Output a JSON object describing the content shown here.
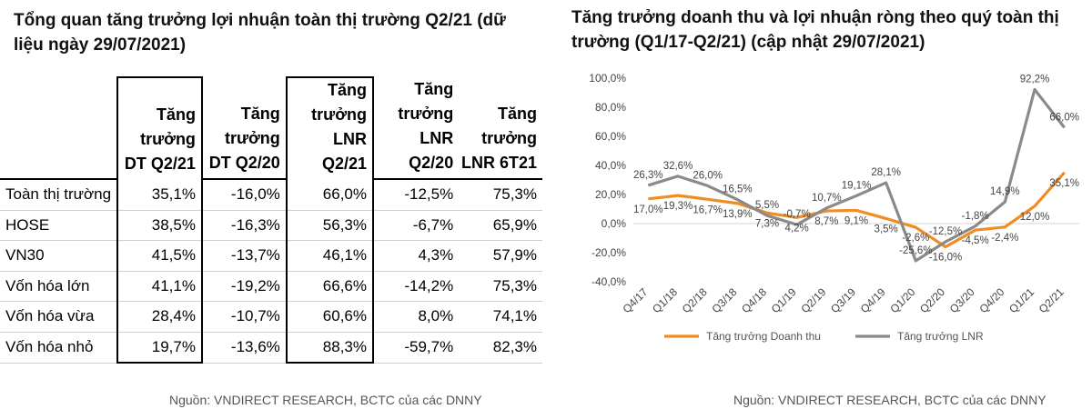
{
  "left": {
    "title": "Tổng quan tăng trưởng lợi nhuận toàn thị trường Q2/21 (dữ liệu ngày 29/07/2021)",
    "columns": [
      "Tăng trưởng DT Q2/21",
      "Tăng trưởng DT Q2/20",
      "Tăng trưởng LNR Q2/21",
      "Tăng trưởng LNR Q2/20",
      "Tăng trưởng LNR 6T21"
    ],
    "rows": [
      {
        "label": "Toàn thị trường",
        "values": [
          "35,1%",
          "-16,0%",
          "66,0%",
          "-12,5%",
          "75,3%"
        ]
      },
      {
        "label": "HOSE",
        "values": [
          "38,5%",
          "-16,3%",
          "56,3%",
          "-6,7%",
          "65,9%"
        ]
      },
      {
        "label": "VN30",
        "values": [
          "41,5%",
          "-13,7%",
          "46,1%",
          "4,3%",
          "57,9%"
        ]
      },
      {
        "label": "Vốn hóa lớn",
        "values": [
          "41,1%",
          "-19,2%",
          "66,6%",
          "-14,2%",
          "75,3%"
        ]
      },
      {
        "label": "Vốn hóa vừa",
        "values": [
          "28,4%",
          "-10,7%",
          "60,6%",
          "8,0%",
          "74,1%"
        ]
      },
      {
        "label": "Vốn hóa nhỏ",
        "values": [
          "19,7%",
          "-13,6%",
          "88,3%",
          "-59,7%",
          "82,3%"
        ]
      }
    ],
    "source": "Nguồn: VNDIRECT RESEARCH, BCTC của các DNNY"
  },
  "right": {
    "title": "Tăng trưởng doanh thu và lợi nhuận ròng theo quý toàn thị trường (Q1/17-Q2/21) (cập nhật 29/07/2021)",
    "source": "Nguồn: VNDIRECT RESEARCH, BCTC của các DNNY"
  },
  "chart_data": {
    "type": "line",
    "categories": [
      "Q4/17",
      "Q1/18",
      "Q2/18",
      "Q3/18",
      "Q4/18",
      "Q1/19",
      "Q2/19",
      "Q3/19",
      "Q4/19",
      "Q1/20",
      "Q2/20",
      "Q3/20",
      "Q4/20",
      "Q1/21",
      "Q2/21"
    ],
    "ylim": [
      -40,
      100
    ],
    "yticks": [
      -40,
      -20,
      0,
      20,
      40,
      60,
      80,
      100
    ],
    "ytick_labels": [
      "-40,0%",
      "-20,0%",
      "0,0%",
      "20,0%",
      "40,0%",
      "60,0%",
      "80,0%",
      "100,0%"
    ],
    "legend_position": "bottom",
    "series": [
      {
        "name": "Tăng trưởng Doanh thu",
        "color": "#F08C22",
        "values": [
          17.0,
          19.3,
          16.7,
          13.9,
          7.3,
          4.2,
          8.7,
          9.1,
          3.5,
          -2.6,
          -16.0,
          -4.5,
          -2.4,
          12.0,
          35.1
        ],
        "labels": [
          "17,0%",
          "19,3%",
          "16,7%",
          "13,9%",
          "7,3%",
          "4,2%",
          "8,7%",
          "9,1%",
          "3,5%",
          "-2,6%",
          "-16,0%",
          "-4,5%",
          "-2,4%",
          "12,0%",
          "35,1%"
        ]
      },
      {
        "name": "Tăng trưởng LNR",
        "color": "#8A8A8A",
        "values": [
          26.3,
          32.6,
          26.0,
          16.5,
          5.5,
          -0.7,
          10.7,
          19.1,
          28.1,
          -25.6,
          -12.5,
          -1.8,
          14.9,
          92.2,
          66.0
        ],
        "labels": [
          "26,3%",
          "32,6%",
          "26,0%",
          "16,5%",
          "5,5%",
          "-0,7%",
          "10,7%",
          "19,1%",
          "28,1%",
          "-25,6%",
          "-12,5%",
          "-1,8%",
          "14,9%",
          "92,2%",
          "66,0%"
        ]
      }
    ]
  }
}
